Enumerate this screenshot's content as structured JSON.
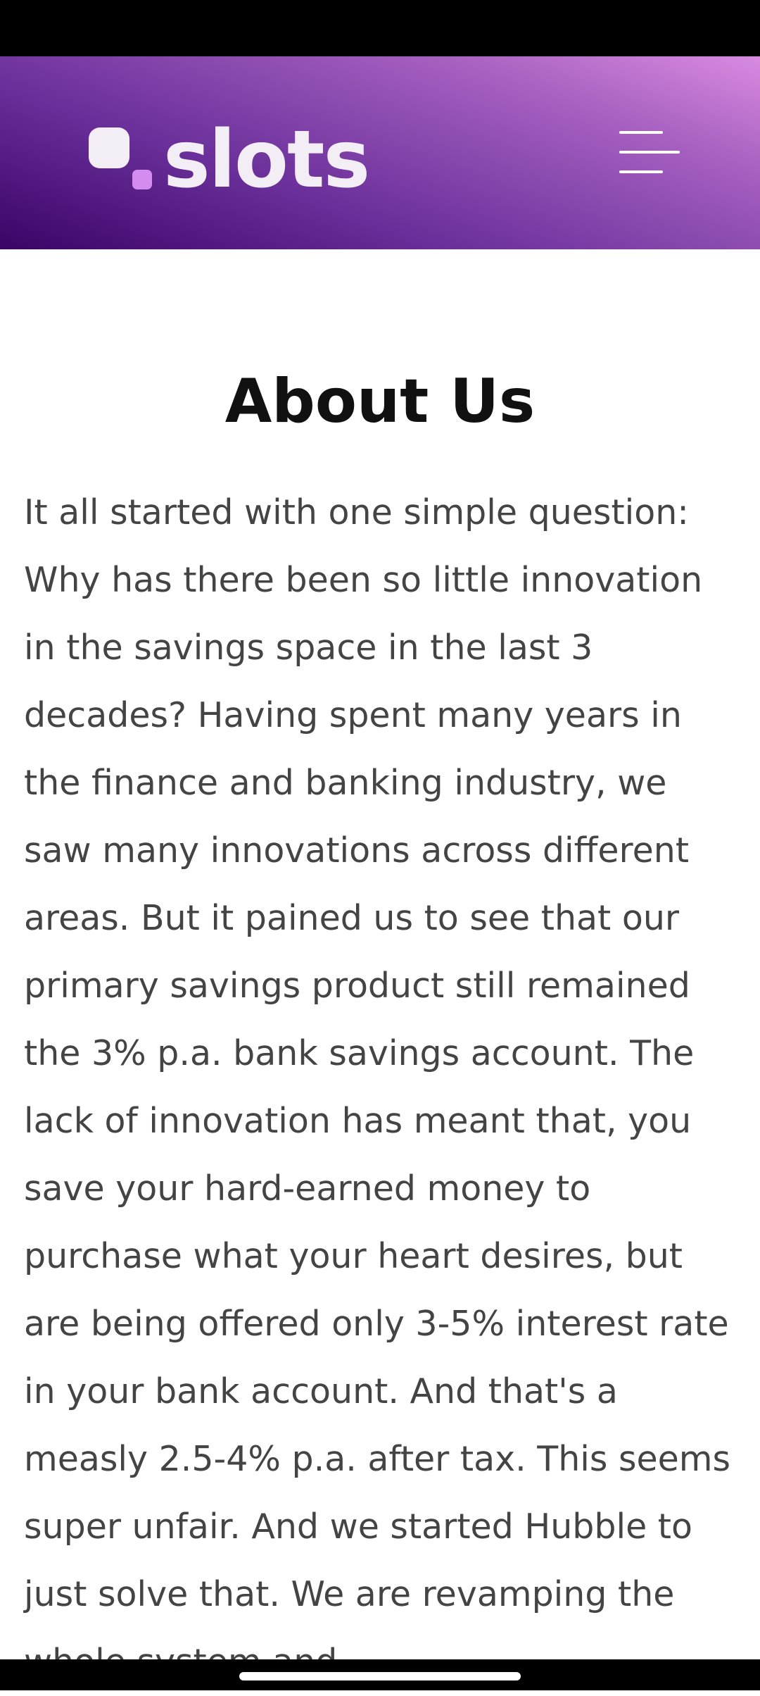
{
  "header": {
    "logo_text": "slots",
    "menu_icon": "hamburger-menu-icon"
  },
  "main": {
    "title": "About Us",
    "body": "It all started with one simple question: Why has there been so little innovation in the savings space in the last 3 decades? Having spent many years in the finance and banking industry, we saw many innovations across different areas. But it pained us to see that our primary savings product still remained the 3% p.a. bank savings account. The lack of innovation has meant that, you save your hard-earned money to purchase what your heart desires, but are being offered only 3-5% interest rate in your bank account. And that's a measly 2.5-4% p.a. after tax. This seems super unfair. And we started Hubble to just solve that. We are revamping the whole system and"
  },
  "colors": {
    "header_gradient_start": "#3a0466",
    "header_gradient_end": "#d88ae0",
    "logo_accent": "#d58cf0",
    "title_color": "#111111",
    "body_color": "#444444"
  }
}
